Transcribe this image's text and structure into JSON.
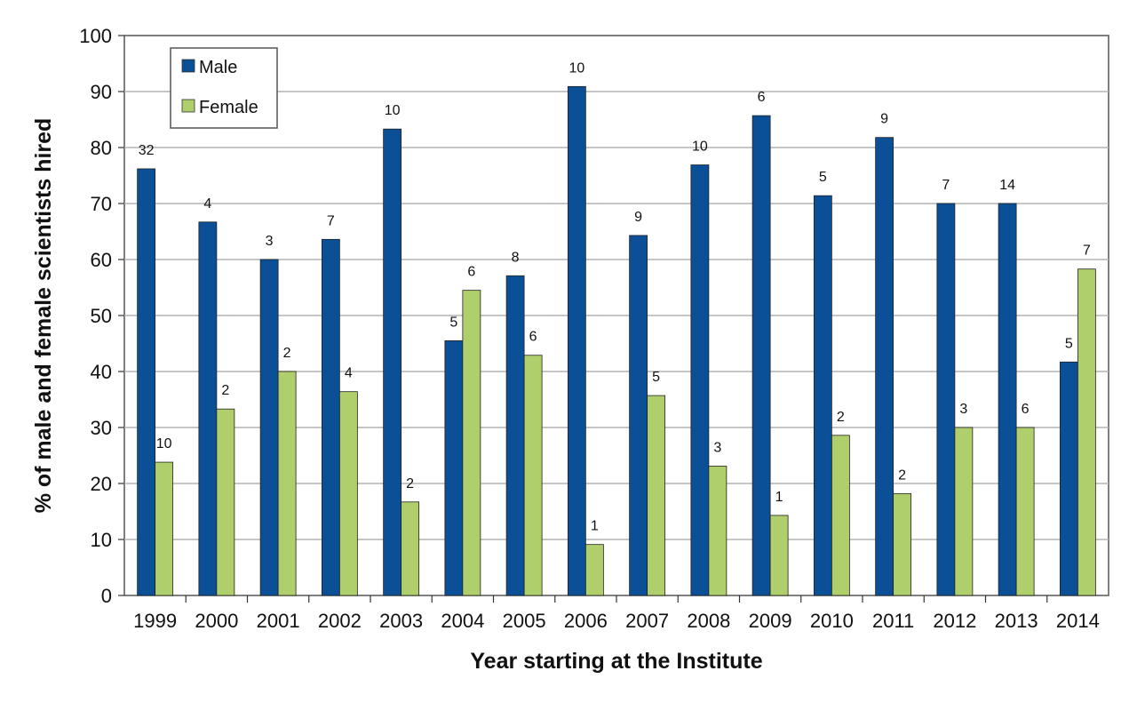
{
  "chart_data": {
    "type": "bar",
    "title": "",
    "xlabel": "Year starting at the Institute",
    "ylabel": "% of male and female scientists hired",
    "ylim": [
      0,
      100
    ],
    "yticks": [
      "0",
      "10",
      "20",
      "30",
      "40",
      "50",
      "60",
      "70",
      "80",
      "90",
      "100"
    ],
    "grid": true,
    "legend_position": "top-left",
    "categories": [
      "1999",
      "2000",
      "2001",
      "2002",
      "2003",
      "2004",
      "2005",
      "2006",
      "2007",
      "2008",
      "2009",
      "2010",
      "2011",
      "2012",
      "2013",
      "2014"
    ],
    "series": [
      {
        "name": "Male",
        "color": "#0b4f97",
        "values": [
          76.2,
          66.7,
          60.0,
          63.6,
          83.3,
          45.5,
          57.1,
          90.9,
          64.3,
          76.9,
          85.7,
          71.4,
          81.8,
          70.0,
          70.0,
          41.7
        ],
        "counts": [
          "32",
          "4",
          "3",
          "7",
          "10",
          "5",
          "8",
          "10",
          "9",
          "10",
          "6",
          "5",
          "9",
          "7",
          "14",
          "5"
        ]
      },
      {
        "name": "Female",
        "color": "#aecf6c",
        "values": [
          23.8,
          33.3,
          40.0,
          36.4,
          16.7,
          54.5,
          42.9,
          9.1,
          35.7,
          23.1,
          14.3,
          28.6,
          18.2,
          30.0,
          30.0,
          58.3
        ],
        "counts": [
          "10",
          "2",
          "2",
          "4",
          "2",
          "6",
          "6",
          "1",
          "5",
          "3",
          "1",
          "2",
          "2",
          "3",
          "6",
          "7"
        ]
      }
    ]
  }
}
